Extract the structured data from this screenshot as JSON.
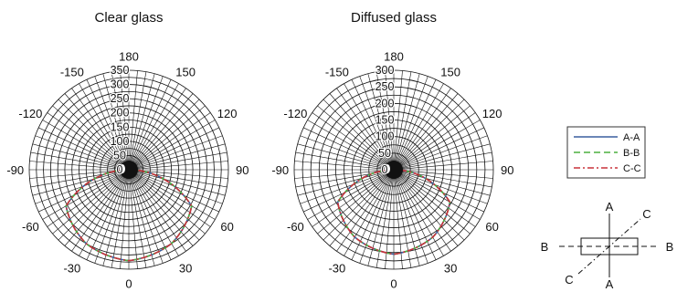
{
  "figure": {
    "angle_ticks": [
      "180",
      "150",
      "120",
      "90",
      "60",
      "30",
      "0",
      "-30",
      "-60",
      "-90",
      "-120",
      "-150"
    ],
    "radial_ticks": [
      "350",
      "300",
      "250",
      "200",
      "150",
      "100",
      "50",
      "0"
    ]
  },
  "legend": {
    "items": [
      {
        "label": "A-A",
        "color": "#3a5f9f",
        "dash": "solid"
      },
      {
        "label": "B-B",
        "color": "#4caf3f",
        "dash": "dashed"
      },
      {
        "label": "C-C",
        "color": "#c8323a",
        "dash": "dash-dot"
      }
    ]
  },
  "diagram": {
    "labels": {
      "a_top": "A",
      "a_bottom": "A",
      "b_left": "B",
      "b_right": "B",
      "c_top": "C",
      "c_bottom": "C"
    }
  },
  "chart_data": [
    {
      "type": "polar-line",
      "title": "Clear glass",
      "angle_unit": "degrees",
      "rlim": [
        0,
        350
      ],
      "grid": true,
      "series": [
        {
          "name": "A-A",
          "color": "#3a5f9f",
          "angles": [
            0,
            30,
            60,
            90,
            120,
            150,
            180,
            -150,
            -120,
            -90,
            -60,
            -30
          ],
          "values": [
            320,
            300,
            255,
            0,
            0,
            0,
            0,
            0,
            0,
            0,
            255,
            300
          ]
        },
        {
          "name": "B-B",
          "color": "#4caf3f",
          "angles": [
            0,
            30,
            60,
            90,
            120,
            150,
            180,
            -150,
            -120,
            -90,
            -60,
            -30
          ],
          "values": [
            320,
            300,
            255,
            0,
            0,
            0,
            0,
            0,
            0,
            0,
            255,
            300
          ]
        },
        {
          "name": "C-C",
          "color": "#c8323a",
          "angles": [
            0,
            30,
            60,
            90,
            120,
            150,
            180,
            -150,
            -120,
            -90,
            -60,
            -30
          ],
          "values": [
            320,
            300,
            255,
            0,
            0,
            0,
            0,
            0,
            0,
            0,
            255,
            300
          ]
        }
      ]
    },
    {
      "type": "polar-line",
      "title": "Diffused glass",
      "angle_unit": "degrees",
      "rlim": [
        0,
        300
      ],
      "grid": true,
      "series": [
        {
          "name": "A-A",
          "color": "#3a5f9f",
          "angles": [
            0,
            30,
            60,
            90,
            120,
            150,
            180,
            -150,
            -120,
            -90,
            -60,
            -30
          ],
          "values": [
            255,
            235,
            195,
            0,
            0,
            0,
            0,
            0,
            0,
            0,
            195,
            235
          ]
        },
        {
          "name": "B-B",
          "color": "#4caf3f",
          "angles": [
            0,
            30,
            60,
            90,
            120,
            150,
            180,
            -150,
            -120,
            -90,
            -60,
            -30
          ],
          "values": [
            255,
            235,
            195,
            0,
            0,
            0,
            0,
            0,
            0,
            0,
            195,
            235
          ]
        },
        {
          "name": "C-C",
          "color": "#c8323a",
          "angles": [
            0,
            30,
            60,
            90,
            120,
            150,
            180,
            -150,
            -120,
            -90,
            -60,
            -30
          ],
          "values": [
            255,
            235,
            195,
            0,
            0,
            0,
            0,
            0,
            0,
            0,
            195,
            235
          ]
        }
      ]
    }
  ]
}
